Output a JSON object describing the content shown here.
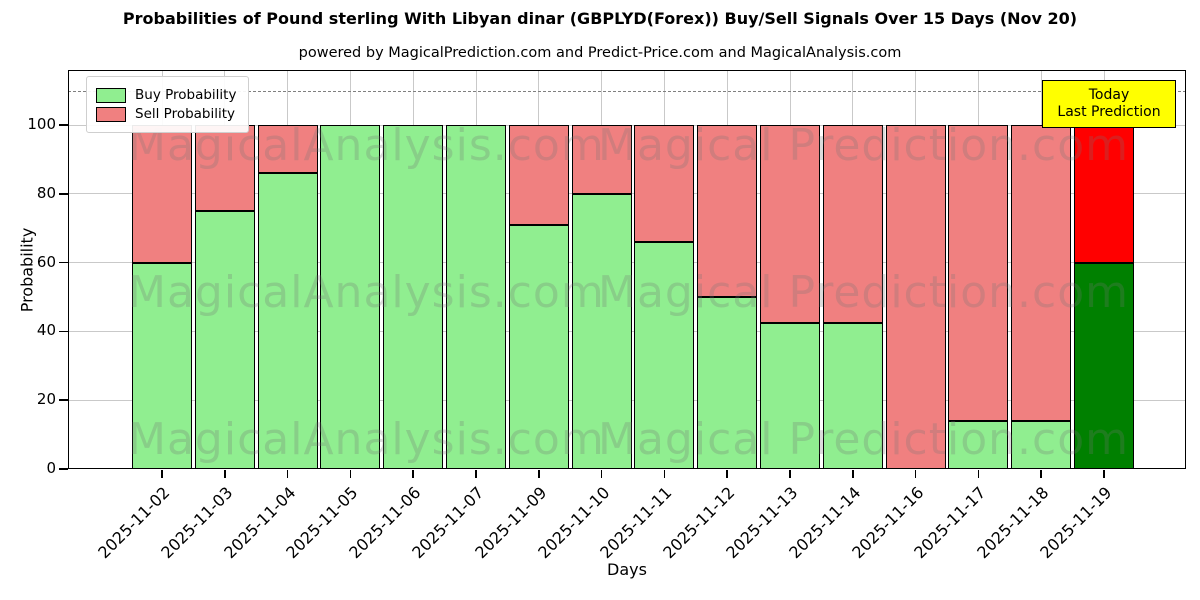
{
  "title": "Probabilities of Pound sterling With Libyan dinar (GBPLYD(Forex)) Buy/Sell Signals Over 15 Days (Nov 20)",
  "subtitle": "powered by MagicalPrediction.com and Predict-Price.com and MagicalAnalysis.com",
  "legend": {
    "items": [
      {
        "label": "Buy Probability",
        "color": "#90ee90"
      },
      {
        "label": "Sell Probability",
        "color": "#f08080"
      }
    ]
  },
  "annotation": {
    "line1": "Today",
    "line2": "Last Prediction",
    "bg_color": "#ffff00",
    "border_color": "#000000"
  },
  "watermarks": {
    "left": "MagicalAnalysis.com",
    "right": "Magical Prediction.com"
  },
  "axes": {
    "xlabel": "Days",
    "ylabel": "Probability",
    "yticks": [
      0,
      20,
      40,
      60,
      80,
      100
    ]
  },
  "chart_data": {
    "type": "bar",
    "stacked": true,
    "title": "Probabilities of Pound sterling With Libyan dinar (GBPLYD(Forex)) Buy/Sell Signals Over 15 Days (Nov 20)",
    "xlabel": "Days",
    "ylabel": "Probability",
    "ylim": [
      0,
      116
    ],
    "yticks": [
      0,
      20,
      40,
      60,
      80,
      100
    ],
    "grid": true,
    "legend_position": "upper left",
    "dashed_line_y": 110,
    "categories": [
      "2025-11-02",
      "2025-11-03",
      "2025-11-04",
      "2025-11-05",
      "2025-11-06",
      "2025-11-07",
      "2025-11-09",
      "2025-11-10",
      "2025-11-11",
      "2025-11-12",
      "2025-11-13",
      "2025-11-14",
      "2025-11-16",
      "2025-11-17",
      "2025-11-18",
      "2025-11-19"
    ],
    "series": [
      {
        "name": "Buy Probability",
        "color": "#90ee90",
        "values": [
          60,
          75,
          86,
          100,
          100,
          100,
          71,
          80,
          66,
          50,
          42.5,
          42.5,
          0,
          14,
          14,
          60
        ]
      },
      {
        "name": "Sell Probability",
        "color": "#f08080",
        "values": [
          40,
          25,
          14,
          0,
          0,
          0,
          29,
          20,
          34,
          50,
          57.5,
          57.5,
          100,
          86,
          86,
          40
        ]
      }
    ],
    "today_index": 15,
    "today_colors": {
      "buy": "#008000",
      "sell": "#ff0000"
    },
    "bar_edge_color": "#000000"
  }
}
